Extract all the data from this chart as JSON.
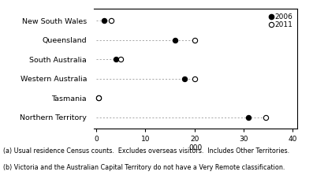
{
  "categories": [
    "New South Wales",
    "Queensland",
    "South Australia",
    "Western Australia",
    "Tasmania",
    "Northern Territory"
  ],
  "values_2006": [
    1.5,
    16.0,
    4.0,
    18.0,
    0.5,
    31.0
  ],
  "values_2011": [
    3.0,
    20.0,
    5.0,
    20.0,
    0.5,
    34.5
  ],
  "xlim": [
    -0.5,
    41
  ],
  "xticks": [
    0,
    10,
    20,
    30,
    40
  ],
  "xlabel": "000",
  "legend_2006": "2006",
  "legend_2011": "2011",
  "footnote1": "(a) Usual residence Census counts.  Excludes overseas visitors.  Includes Other Territories.",
  "footnote2": "(b) Victoria and the Australian Capital Territory do not have a Very Remote classification.",
  "bg_color": "#ffffff",
  "dashed_color": "#999999",
  "footnote_fontsize": 5.8,
  "tick_fontsize": 6.5,
  "label_fontsize": 6.8,
  "legend_fontsize": 6.5,
  "marker_size": 4.5
}
